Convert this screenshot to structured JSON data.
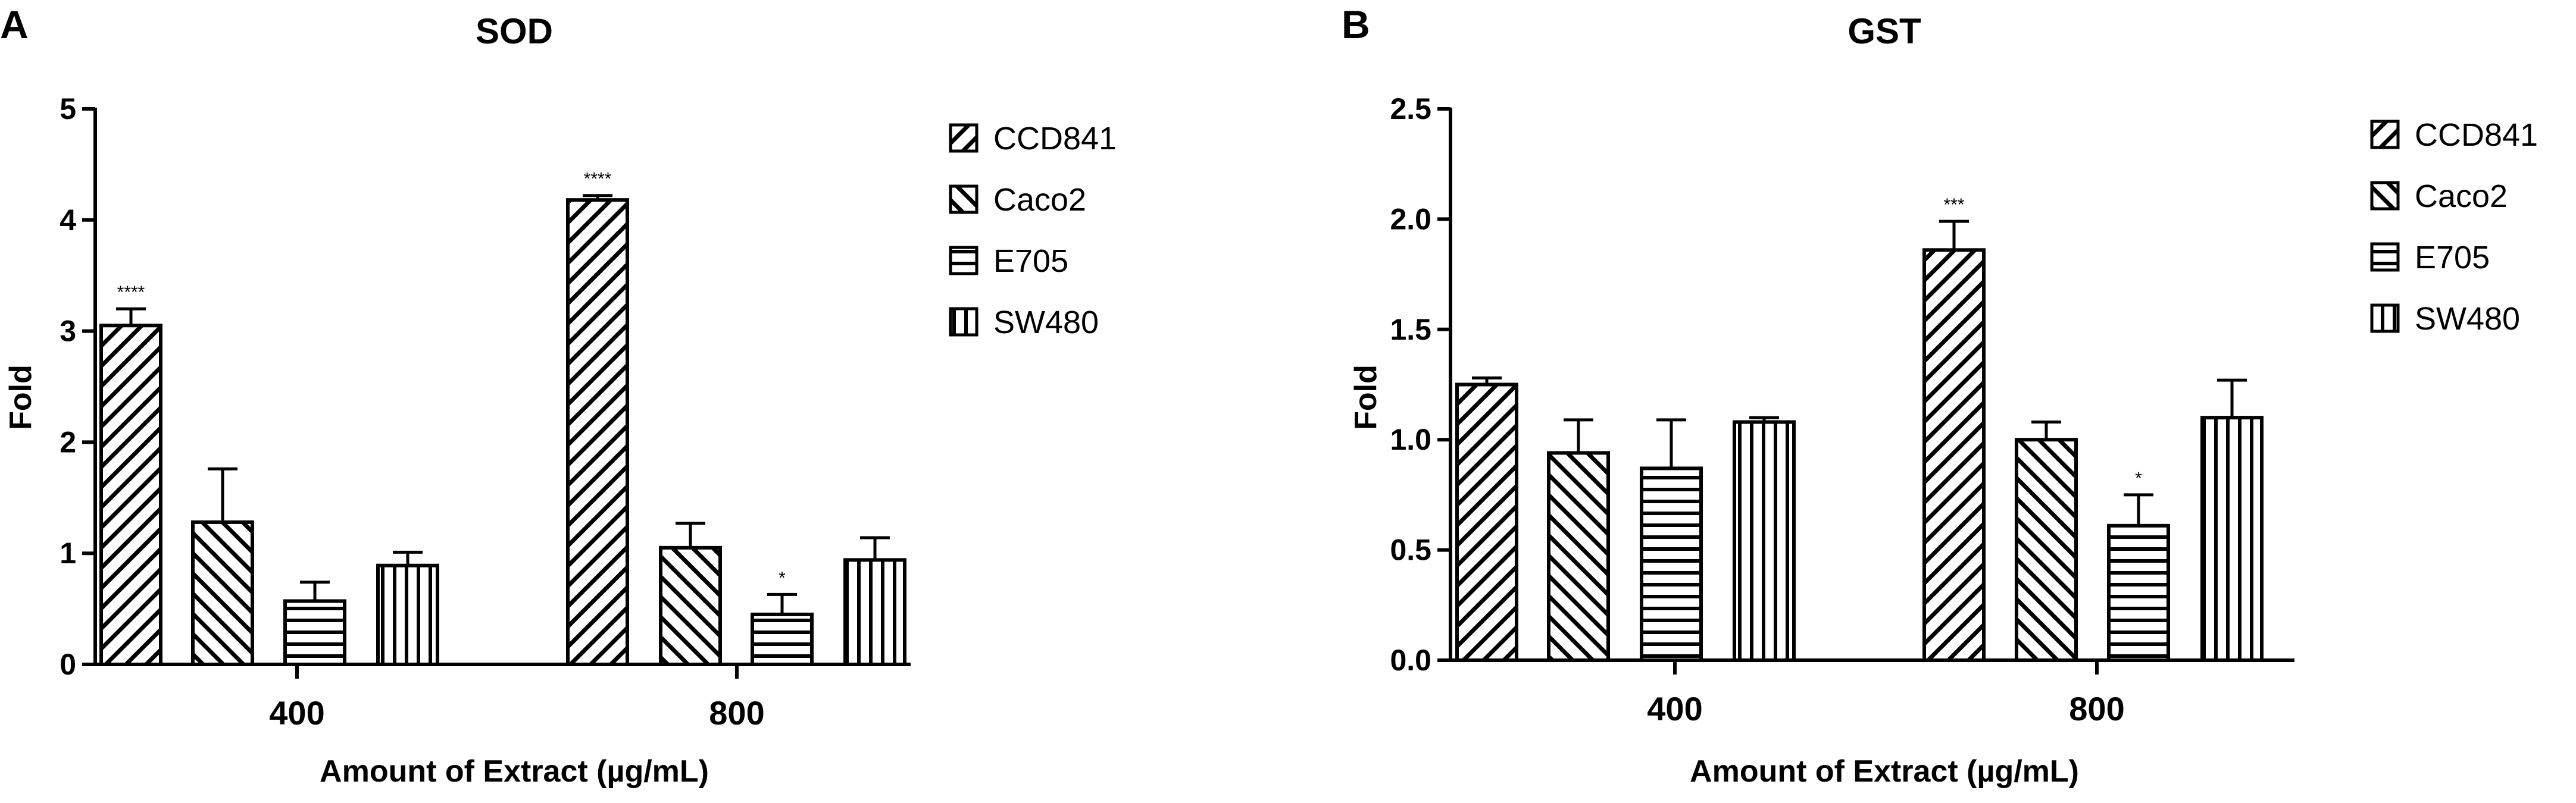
{
  "patterns": [
    "diag-up",
    "diag-down",
    "horizontal",
    "vertical"
  ],
  "chart_data": [
    {
      "panel": "A",
      "type": "bar",
      "title": "SOD",
      "xlabel": "Amount of Extract (µg/mL)",
      "ylabel": "Fold",
      "ylim": [
        0,
        5
      ],
      "yticks": [
        "0",
        "1",
        "2",
        "3",
        "4",
        "5"
      ],
      "categories": [
        "400",
        "800"
      ],
      "legend_position": "top-right",
      "grid": false,
      "series": [
        {
          "name": "CCD841",
          "values": [
            3.05,
            4.18
          ],
          "errors": [
            0.15,
            0.04
          ],
          "significance": [
            "****",
            "****"
          ]
        },
        {
          "name": "Caco2",
          "values": [
            1.28,
            1.05
          ],
          "errors": [
            0.48,
            0.22
          ],
          "significance": [
            "",
            ""
          ]
        },
        {
          "name": "E705",
          "values": [
            0.57,
            0.45
          ],
          "errors": [
            0.17,
            0.18
          ],
          "significance": [
            "",
            "*"
          ]
        },
        {
          "name": "SW480",
          "values": [
            0.89,
            0.94
          ],
          "errors": [
            0.12,
            0.2
          ],
          "significance": [
            "",
            ""
          ]
        }
      ]
    },
    {
      "panel": "B",
      "type": "bar",
      "title": "GST",
      "xlabel": "Amount of Extract (µg/mL)",
      "ylabel": "Fold",
      "ylim": [
        0,
        2.5
      ],
      "yticks": [
        "0.0",
        "0.5",
        "1.0",
        "1.5",
        "2.0",
        "2.5"
      ],
      "categories": [
        "400",
        "800"
      ],
      "legend_position": "top-right",
      "grid": false,
      "series": [
        {
          "name": "CCD841",
          "values": [
            1.25,
            1.86
          ],
          "errors": [
            0.03,
            0.13
          ],
          "significance": [
            "",
            "***"
          ]
        },
        {
          "name": "Caco2",
          "values": [
            0.94,
            1.0
          ],
          "errors": [
            0.15,
            0.08
          ],
          "significance": [
            "",
            ""
          ]
        },
        {
          "name": "E705",
          "values": [
            0.87,
            0.61
          ],
          "errors": [
            0.22,
            0.14
          ],
          "significance": [
            "",
            "*"
          ]
        },
        {
          "name": "SW480",
          "values": [
            1.08,
            1.1
          ],
          "errors": [
            0.02,
            0.17
          ],
          "significance": [
            "",
            ""
          ]
        }
      ]
    }
  ]
}
